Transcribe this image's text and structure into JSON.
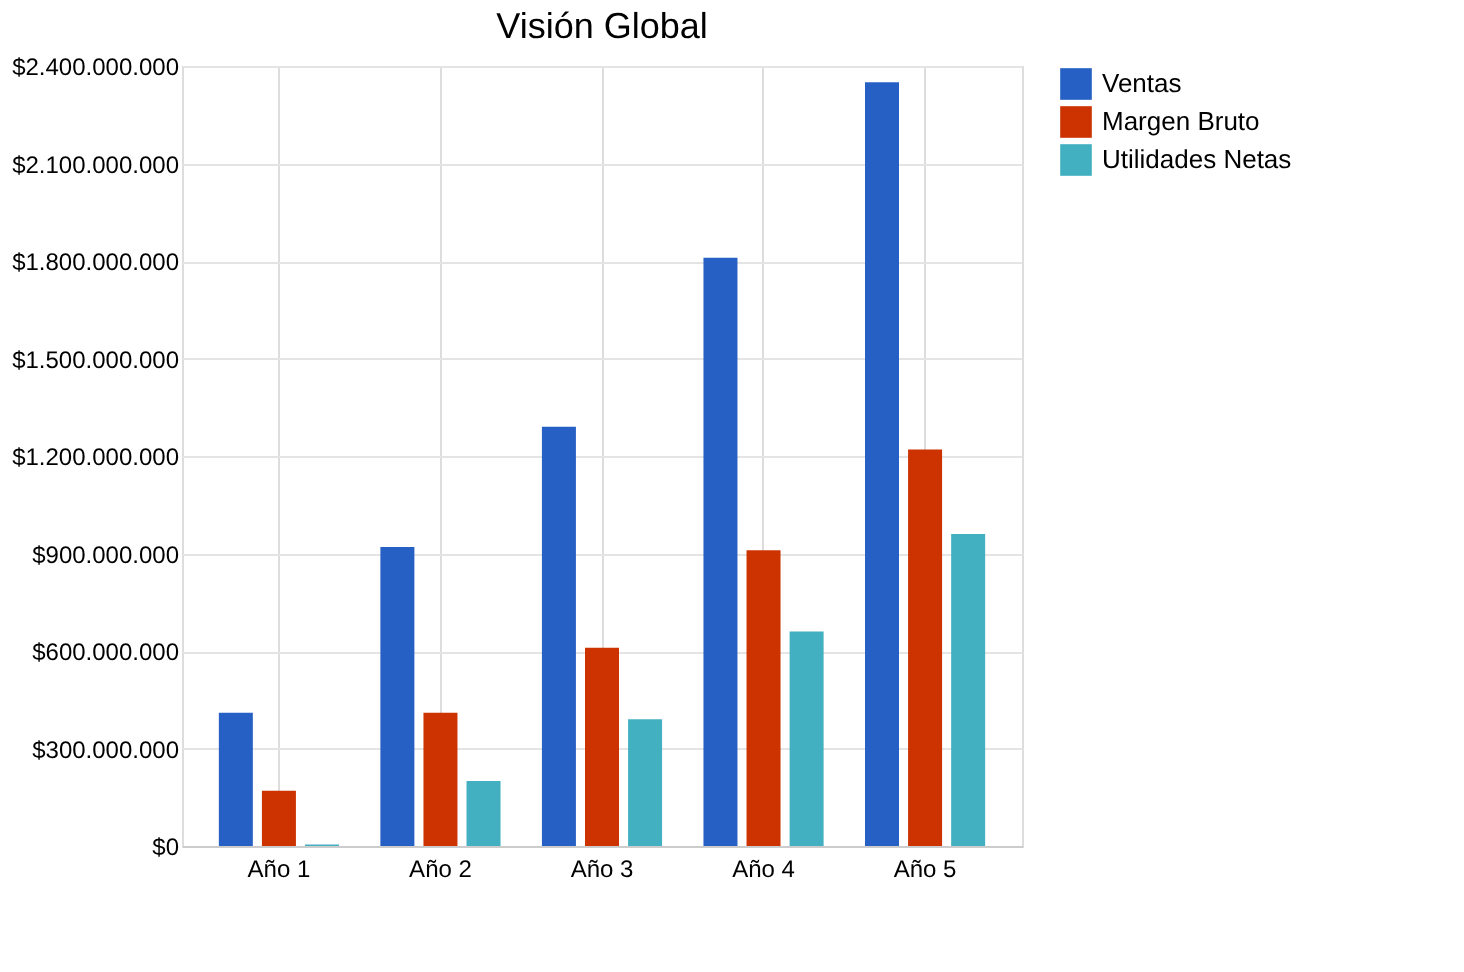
{
  "chart_data": {
    "type": "bar",
    "title": "Visión Global",
    "categories": [
      "Año 1",
      "Año 2",
      "Año 3",
      "Año 4",
      "Año 5"
    ],
    "series": [
      {
        "name": "Ventas",
        "color": "#2660c4",
        "values": [
          410000000,
          920000000,
          1290000000,
          1810000000,
          2350000000
        ]
      },
      {
        "name": "Margen Bruto",
        "color": "#cc3300",
        "values": [
          170000000,
          410000000,
          610000000,
          910000000,
          1220000000
        ]
      },
      {
        "name": "Utilidades Netas",
        "color": "#42b0c0",
        "values": [
          5000000,
          200000000,
          390000000,
          660000000,
          960000000
        ]
      }
    ],
    "ylim": [
      0,
      2400000000
    ],
    "yticks": [
      {
        "value": 0,
        "label": "$0"
      },
      {
        "value": 300000000,
        "label": "$300.000.000"
      },
      {
        "value": 600000000,
        "label": "$600.000.000"
      },
      {
        "value": 900000000,
        "label": "$900.000.000"
      },
      {
        "value": 1200000000,
        "label": "$1.200.000.000"
      },
      {
        "value": 1500000000,
        "label": "$1.500.000.000"
      },
      {
        "value": 1800000000,
        "label": "$1.800.000.000"
      },
      {
        "value": 2100000000,
        "label": "$2.100.000.000"
      },
      {
        "value": 2400000000,
        "label": "$2.400.000.000"
      }
    ],
    "grid": true,
    "legend": "right"
  }
}
